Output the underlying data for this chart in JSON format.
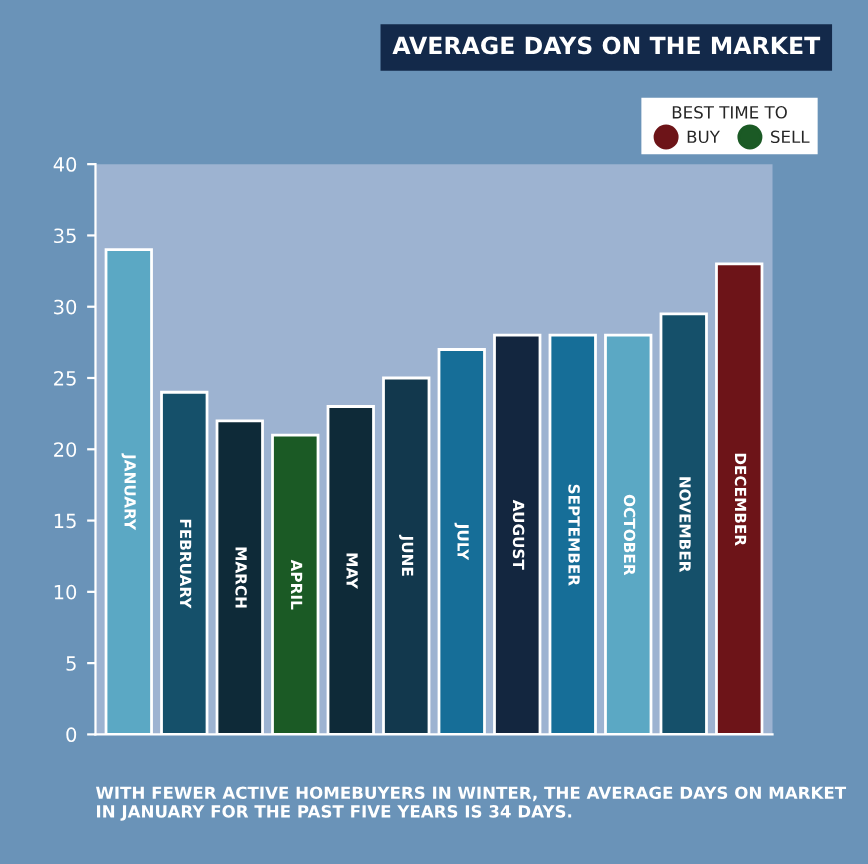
{
  "chart_data": {
    "type": "bar",
    "title": "AVERAGE DAYS ON THE MARKET",
    "categories": [
      "JANUARY",
      "FEBRUARY",
      "MARCH",
      "APRIL",
      "MAY",
      "JUNE",
      "JULY",
      "AUGUST",
      "SEPTEMBER",
      "OCTOBER",
      "NOVEMBER",
      "DECEMBER"
    ],
    "ylim": [
      0,
      40
    ],
    "yticks": [
      0,
      5,
      10,
      15,
      20,
      25,
      30,
      35,
      40
    ],
    "grid": false,
    "legend_title": "BEST TIME TO",
    "legend": "top right",
    "series": [
      {
        "values": [
          34,
          24,
          22,
          null,
          23,
          25,
          27,
          28,
          28,
          28,
          29.5,
          null
        ],
        "colors": [
          "#5ba8c4",
          "#15506a",
          "#0e2a38",
          null,
          "#0e2a38",
          "#12384d",
          "#166e98",
          "#13263f",
          "#166e98",
          "#5ba8c4",
          "#15506a",
          null
        ]
      },
      {
        "name": "BUY",
        "color": "#6d1418",
        "values": [
          null,
          null,
          null,
          null,
          null,
          null,
          null,
          null,
          null,
          null,
          null,
          33
        ]
      },
      {
        "name": "SELL",
        "color": "#1b5a25",
        "values": [
          null,
          null,
          null,
          21,
          null,
          null,
          null,
          null,
          null,
          null,
          null,
          null
        ]
      }
    ],
    "annotations": [
      "WITH FEWER ACTIVE HOMEBUYERS IN WINTER, THE AVERAGE DAYS ON MARKET IN JANUARY FOR THE PAST FIVE YEARS IS 34 DAYS."
    ]
  }
}
